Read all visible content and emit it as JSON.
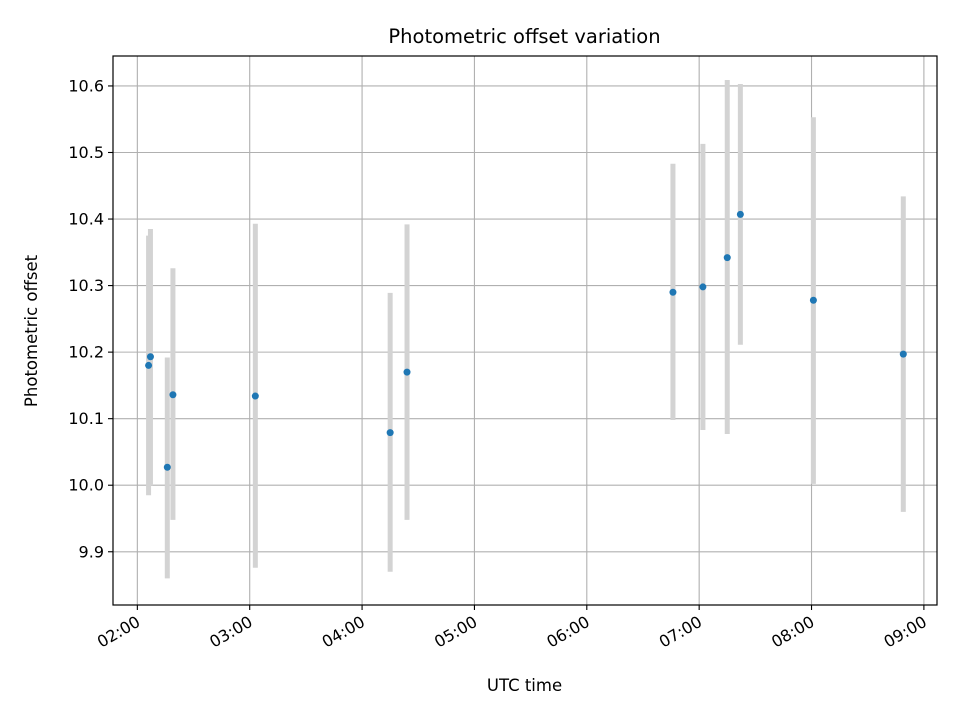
{
  "chart_data": {
    "type": "scatter",
    "title": "Photometric offset variation",
    "xlabel": "UTC time",
    "ylabel": "Photometric offset",
    "grid": true,
    "xlim": [
      "01:47",
      "09:07"
    ],
    "ylim": [
      9.82,
      10.645
    ],
    "x_ticks": [
      "02:00",
      "03:00",
      "04:00",
      "05:00",
      "06:00",
      "07:00",
      "08:00",
      "09:00"
    ],
    "y_ticks": [
      9.9,
      10.0,
      10.1,
      10.2,
      10.3,
      10.4,
      10.5,
      10.6
    ],
    "y_tick_labels": [
      "9.9",
      "10.0",
      "10.1",
      "10.2",
      "10.3",
      "10.4",
      "10.5",
      "10.6"
    ],
    "errorbar_color": "#d3d3d3",
    "point_color": "#1f77b4",
    "points": [
      {
        "x": "02:06",
        "y": 10.18,
        "yerr_low": 9.985,
        "yerr_high": 10.375
      },
      {
        "x": "02:07",
        "y": 10.193,
        "yerr_low": 10.0,
        "yerr_high": 10.385
      },
      {
        "x": "02:16",
        "y": 10.027,
        "yerr_low": 9.86,
        "yerr_high": 10.192
      },
      {
        "x": "02:19",
        "y": 10.136,
        "yerr_low": 9.948,
        "yerr_high": 10.326
      },
      {
        "x": "03:03",
        "y": 10.134,
        "yerr_low": 9.876,
        "yerr_high": 10.393
      },
      {
        "x": "04:15",
        "y": 10.079,
        "yerr_low": 9.87,
        "yerr_high": 10.289
      },
      {
        "x": "04:24",
        "y": 10.17,
        "yerr_low": 9.948,
        "yerr_high": 10.392
      },
      {
        "x": "06:46",
        "y": 10.29,
        "yerr_low": 10.098,
        "yerr_high": 10.483
      },
      {
        "x": "07:02",
        "y": 10.298,
        "yerr_low": 10.083,
        "yerr_high": 10.513
      },
      {
        "x": "07:15",
        "y": 10.342,
        "yerr_low": 10.077,
        "yerr_high": 10.609
      },
      {
        "x": "07:22",
        "y": 10.407,
        "yerr_low": 10.211,
        "yerr_high": 10.603
      },
      {
        "x": "08:01",
        "y": 10.278,
        "yerr_low": 10.002,
        "yerr_high": 10.553
      },
      {
        "x": "08:49",
        "y": 10.197,
        "yerr_low": 9.96,
        "yerr_high": 10.434
      }
    ]
  }
}
